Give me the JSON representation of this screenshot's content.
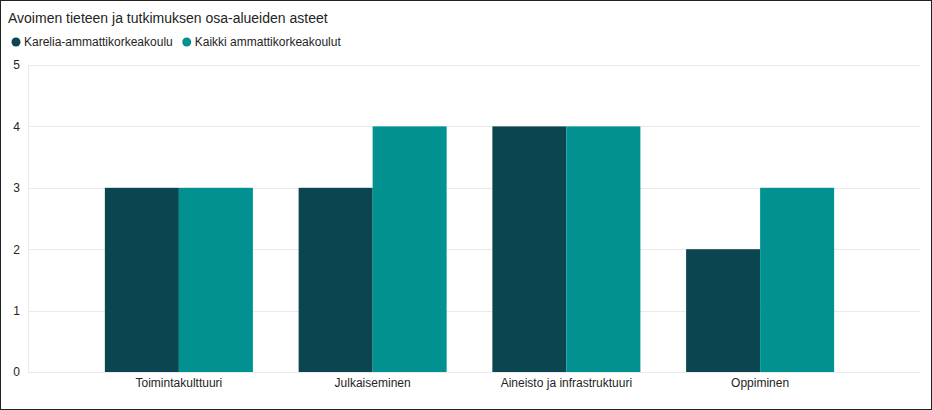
{
  "chart_data": {
    "type": "bar",
    "title": "Avoimen tieteen ja tutkimuksen osa-alueiden asteet",
    "categories": [
      "Toimintakulttuuri",
      "Julkaiseminen",
      "Aineisto ja infrastruktuuri",
      "Oppiminen"
    ],
    "series": [
      {
        "name": "Karelia-ammattikorkeakoulu",
        "color": "#0b4650",
        "values": [
          3,
          3,
          4,
          2
        ]
      },
      {
        "name": "Kaikki ammattikorkeakoulut",
        "color": "#009190",
        "values": [
          3,
          4,
          4,
          3
        ]
      }
    ],
    "ylim": [
      0,
      5
    ],
    "yticks": [
      0,
      1,
      2,
      3,
      4,
      5
    ],
    "grid": true,
    "legend": "top"
  }
}
